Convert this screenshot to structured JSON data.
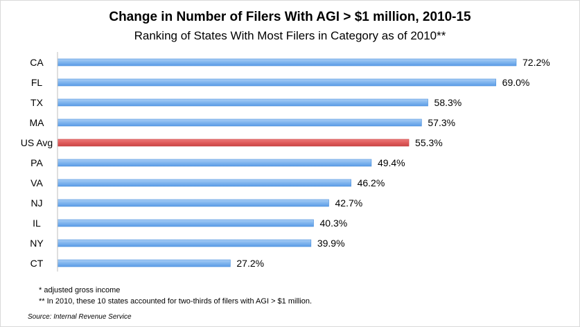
{
  "chart_data": {
    "type": "bar",
    "orientation": "horizontal",
    "title": "Change in Number of Filers With AGI > $1 million, 2010-15",
    "subtitle": "Ranking of States With Most Filers in Category as of 2010**",
    "categories": [
      "CA",
      "FL",
      "TX",
      "MA",
      "US Avg",
      "PA",
      "VA",
      "NJ",
      "IL",
      "NY",
      "CT"
    ],
    "values": [
      72.2,
      69.0,
      58.3,
      57.3,
      55.3,
      49.4,
      46.2,
      42.7,
      40.3,
      39.9,
      27.2
    ],
    "value_labels": [
      "72.2%",
      "69.0%",
      "58.3%",
      "57.3%",
      "55.3%",
      "49.4%",
      "46.2%",
      "42.7%",
      "40.3%",
      "39.9%",
      "27.2%"
    ],
    "highlight_category": "US Avg",
    "colors": {
      "bar": "#7fb5ee",
      "bar_edge": "#4a8fdc",
      "highlight": "#e05b5b",
      "axis": "#bfbfbf"
    },
    "xlim": [
      0,
      80
    ],
    "grid": false,
    "legend": "none"
  },
  "notes": {
    "line1": "* adjusted gross income",
    "line2": "** In 2010, these 10 states accounted for two-thirds of filers with AGI > $1 million."
  },
  "source": "Source: Internal Revenue Service"
}
